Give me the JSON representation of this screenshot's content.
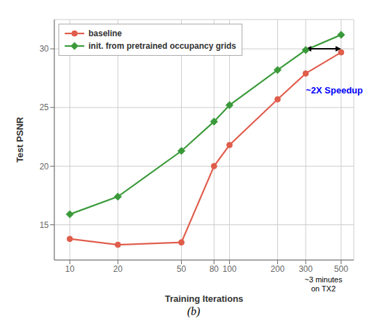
{
  "chart_data": {
    "type": "line",
    "xlabel": "Training Iterations",
    "ylabel": "Test PSNR",
    "x": [
      10,
      20,
      50,
      80,
      100,
      200,
      300,
      500
    ],
    "series": [
      {
        "name": "baseline",
        "color": "#e05c4b",
        "marker": "circle",
        "values": [
          13.8,
          13.3,
          13.5,
          20.0,
          21.8,
          25.7,
          27.9,
          29.7
        ]
      },
      {
        "name": "init.  from pretrained occupancy grids",
        "color": "#3a9a3a",
        "marker": "diamond",
        "values": [
          15.9,
          17.4,
          21.3,
          23.8,
          25.2,
          28.2,
          29.9,
          31.2
        ]
      }
    ],
    "xlim": [
      8,
      600
    ],
    "ylim": [
      12.0,
      32.5
    ],
    "xticks": [
      10,
      20,
      50,
      80,
      100,
      200,
      300,
      500
    ],
    "yticks": [
      15,
      20,
      25,
      30
    ],
    "log": "x",
    "grid": true,
    "legend": "upper left",
    "annotations": [
      {
        "type": "double_arrow",
        "x": [
          300,
          500
        ],
        "y": 30.0
      },
      {
        "type": "text",
        "text": "~2X Speedup",
        "color": "#0000ff",
        "position": "below_arrow"
      },
      {
        "type": "text",
        "text": "~3 minutes\non TX2",
        "position": "below_axis"
      }
    ],
    "caption": "(b)"
  }
}
